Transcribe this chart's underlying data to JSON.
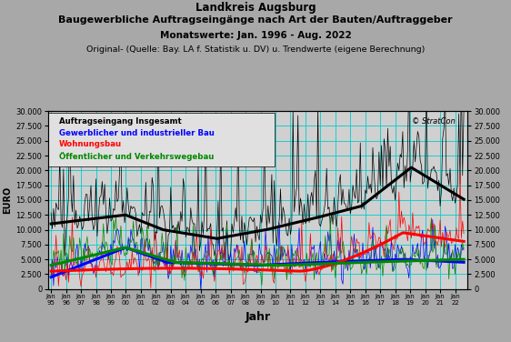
{
  "title_line1": "Landkreis Augsburg",
  "title_line2_pre": "Baugewerbliche ",
  "title_line2_ul": "Auftragseingänge",
  "title_line2_post": " nach Art der Bauten/Auftraggeber",
  "title_line3": "Monatswerte: Jan. 1996 - Aug. 2022",
  "title_line4": "Original- (Quelle: Bay. LA f. Statistik u. DV) u. Trendwerte (eigene Berechnung)",
  "xlabel": "Jahr",
  "ylabel": "EURO",
  "ylim": [
    0,
    30000
  ],
  "yticks": [
    0,
    2500,
    5000,
    7500,
    10000,
    12500,
    15000,
    17500,
    20000,
    22500,
    25000,
    27500,
    30000
  ],
  "background_color": "#a8a8a8",
  "plot_bg_color": "#d0d0d0",
  "legend_box_color": "#e8e8e8",
  "legend_entries": [
    {
      "label": "Auftragseingang Insgesamt",
      "color": "#000000"
    },
    {
      "label": "Gewerblicher und industrieller Bau",
      "color": "#0000ff"
    },
    {
      "label": "Wohnungsbau",
      "color": "#ff0000"
    },
    {
      "label": "Öffentlicher und Verkehrswegebau",
      "color": "#008800"
    }
  ],
  "copyright": "© StratCon",
  "grid_color": "#00cccc",
  "total_color": "#000000",
  "gewerblich_color": "#0000ff",
  "wohnungsbau_color": "#ff0000",
  "oeffentlich_color": "#008800"
}
